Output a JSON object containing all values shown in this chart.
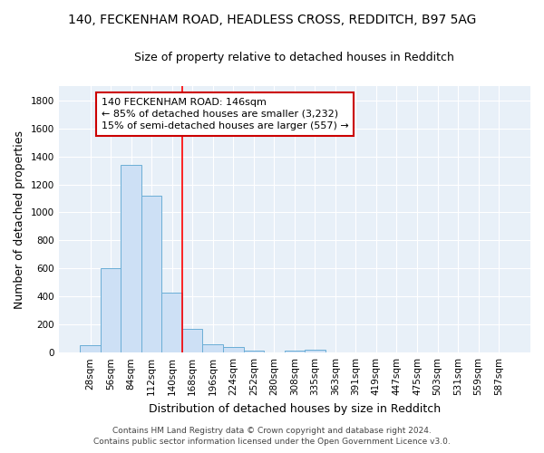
{
  "title_line1": "140, FECKENHAM ROAD, HEADLESS CROSS, REDDITCH, B97 5AG",
  "title_line2": "Size of property relative to detached houses in Redditch",
  "xlabel": "Distribution of detached houses by size in Redditch",
  "ylabel": "Number of detached properties",
  "bin_labels": [
    "28sqm",
    "56sqm",
    "84sqm",
    "112sqm",
    "140sqm",
    "168sqm",
    "196sqm",
    "224sqm",
    "252sqm",
    "280sqm",
    "308sqm",
    "335sqm",
    "363sqm",
    "391sqm",
    "419sqm",
    "447sqm",
    "475sqm",
    "503sqm",
    "531sqm",
    "559sqm",
    "587sqm"
  ],
  "bar_heights": [
    55,
    600,
    1340,
    1120,
    425,
    170,
    58,
    38,
    12,
    0,
    15,
    20,
    0,
    0,
    0,
    0,
    0,
    0,
    0,
    0,
    0
  ],
  "bar_color": "#cde0f5",
  "bar_edgecolor": "#6baed6",
  "red_line_index": 4,
  "annotation_line1": "140 FECKENHAM ROAD: 146sqm",
  "annotation_line2": "← 85% of detached houses are smaller (3,232)",
  "annotation_line3": "15% of semi-detached houses are larger (557) →",
  "annotation_box_color": "#ffffff",
  "annotation_box_edgecolor": "#cc0000",
  "ylim": [
    0,
    1900
  ],
  "yticks": [
    0,
    200,
    400,
    600,
    800,
    1000,
    1200,
    1400,
    1600,
    1800
  ],
  "background_color": "#e8f0f8",
  "grid_color": "#ffffff",
  "fig_background": "#ffffff",
  "footer_line1": "Contains HM Land Registry data © Crown copyright and database right 2024.",
  "footer_line2": "Contains public sector information licensed under the Open Government Licence v3.0.",
  "title_fontsize": 10,
  "subtitle_fontsize": 9,
  "axis_label_fontsize": 9,
  "tick_fontsize": 7.5,
  "annotation_fontsize": 8,
  "footer_fontsize": 6.5
}
